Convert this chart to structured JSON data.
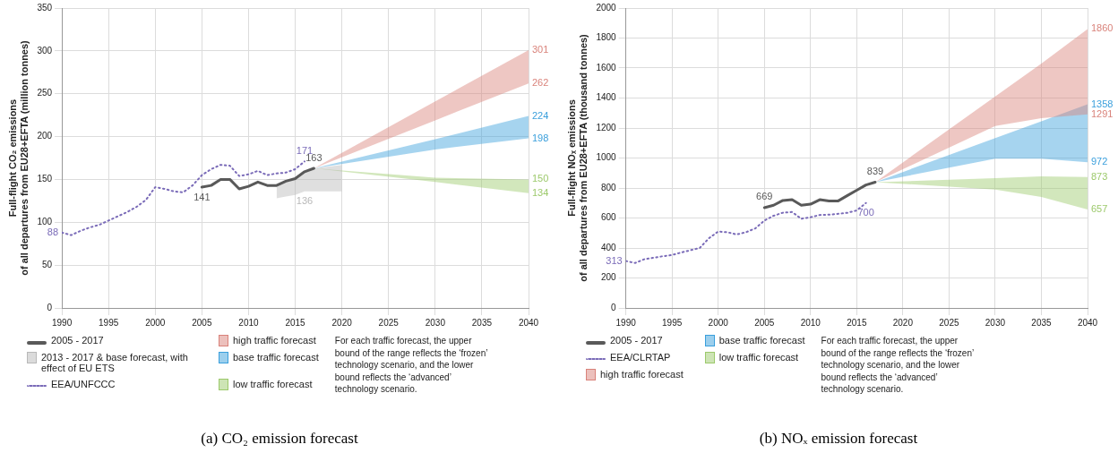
{
  "chart_data": [
    {
      "type": "line",
      "title": "(a) CO₂ emission forecast",
      "ylabel": "Full-flight CO₂ emissions\nof all departures from EU28+EFTA (million tonnes)",
      "xlim": [
        1990,
        2040
      ],
      "xticks": [
        1990,
        1995,
        2000,
        2005,
        2010,
        2015,
        2020,
        2025,
        2030,
        2035,
        2040
      ],
      "ylim": [
        0,
        350
      ],
      "yticks": [
        0,
        50,
        100,
        150,
        200,
        250,
        300,
        350
      ],
      "grid": true,
      "legend": "bottom",
      "marker": "none",
      "series": [
        {
          "name": "2005 - 2017",
          "color": "#595959",
          "x": [
            2005,
            2006,
            2007,
            2008,
            2009,
            2010,
            2011,
            2012,
            2013,
            2014,
            2015,
            2016,
            2017
          ],
          "values": [
            141,
            143,
            150,
            150,
            139,
            142,
            147,
            143,
            143,
            148,
            151,
            159,
            163
          ]
        },
        {
          "name": "2013 - 2017 & base forecast, with effect of EU ETS",
          "type": "area",
          "color": "#b8b8b8",
          "x": [
            2013,
            2014,
            2015,
            2016,
            2017,
            2020
          ],
          "values": [
            null,
            null,
            null,
            null,
            null,
            null
          ],
          "upper": [
            143,
            148,
            151,
            159,
            163,
            167
          ],
          "lower": [
            128,
            130,
            132,
            136,
            136,
            136
          ]
        },
        {
          "name": "EEA/UNFCCC",
          "color": "#7a6bb8",
          "line_style": "dotted",
          "x": [
            1990,
            1991,
            1992,
            1993,
            1994,
            1995,
            1996,
            1997,
            1998,
            1999,
            2000,
            2001,
            2002,
            2003,
            2004,
            2005,
            2006,
            2007,
            2008,
            2009,
            2010,
            2011,
            2012,
            2013,
            2014,
            2015,
            2016
          ],
          "values": [
            88,
            85,
            90,
            94,
            97,
            102,
            107,
            112,
            118,
            126,
            141,
            139,
            136,
            135,
            143,
            155,
            162,
            167,
            166,
            154,
            156,
            160,
            155,
            157,
            158,
            162,
            171
          ]
        },
        {
          "name": "high traffic forecast",
          "type": "area",
          "color": "#d9827a",
          "x": [
            2017,
            2030,
            2040
          ],
          "values": [
            null,
            null,
            null
          ],
          "upper": [
            163,
            241,
            301
          ],
          "lower": [
            163,
            219,
            262
          ]
        },
        {
          "name": "base traffic forecast",
          "type": "area",
          "color": "#3a9fdc",
          "x": [
            2017,
            2030,
            2040
          ],
          "values": [
            null,
            null,
            null
          ],
          "upper": [
            163,
            197,
            224
          ],
          "lower": [
            163,
            185,
            198
          ]
        },
        {
          "name": "low traffic forecast",
          "type": "area",
          "color": "#9cc96b",
          "x": [
            2017,
            2030,
            2040
          ],
          "values": [
            null,
            null,
            null
          ],
          "upper": [
            163,
            152,
            150
          ],
          "lower": [
            163,
            147,
            134
          ]
        }
      ],
      "annotations": [
        {
          "text": "88",
          "x": 1990,
          "y": 88
        },
        {
          "text": "171",
          "x": 2016,
          "y": 171
        },
        {
          "text": "163",
          "x": 2017,
          "y": 163
        },
        {
          "text": "141",
          "x": 2005,
          "y": 141
        },
        {
          "text": "136",
          "x": 2016,
          "y": 136
        },
        {
          "text": "301",
          "x": 2040,
          "y": 301
        },
        {
          "text": "262",
          "x": 2040,
          "y": 262
        },
        {
          "text": "224",
          "x": 2040,
          "y": 224
        },
        {
          "text": "198",
          "x": 2040,
          "y": 198
        },
        {
          "text": "150",
          "x": 2040,
          "y": 150
        },
        {
          "text": "134",
          "x": 2040,
          "y": 134
        },
        "For each traffic forecast, the upper bound of the range reflects the ‘frozen’ technology scenario, and the lower bound reflects the ‘advanced’ technology scenario."
      ]
    },
    {
      "type": "line",
      "title": "(b) NOₓ emission forecast",
      "ylabel": "Full-flight NOₓ emissions\nof all departures from EU28+EFTA (thousand tonnes)",
      "xlim": [
        1990,
        2040
      ],
      "xticks": [
        1990,
        1995,
        2000,
        2005,
        2010,
        2015,
        2020,
        2025,
        2030,
        2035,
        2040
      ],
      "ylim": [
        0,
        2000
      ],
      "yticks": [
        0,
        200,
        400,
        600,
        800,
        1000,
        1200,
        1400,
        1600,
        1800,
        2000
      ],
      "grid": true,
      "legend": "bottom",
      "marker": "none",
      "series": [
        {
          "name": "2005 - 2017",
          "color": "#595959",
          "x": [
            2005,
            2006,
            2007,
            2008,
            2009,
            2010,
            2011,
            2012,
            2013,
            2014,
            2015,
            2016,
            2017
          ],
          "values": [
            669,
            685,
            717,
            722,
            685,
            692,
            722,
            714,
            714,
            750,
            785,
            820,
            839
          ]
        },
        {
          "name": "EEA/CLRTAP",
          "color": "#7a6bb8",
          "line_style": "dotted",
          "x": [
            1990,
            1991,
            1992,
            1993,
            1994,
            1995,
            1996,
            1997,
            1998,
            1999,
            2000,
            2001,
            2002,
            2003,
            2004,
            2005,
            2006,
            2007,
            2008,
            2009,
            2010,
            2011,
            2012,
            2013,
            2014,
            2015,
            2016
          ],
          "values": [
            313,
            300,
            325,
            335,
            345,
            353,
            370,
            385,
            400,
            465,
            510,
            505,
            490,
            505,
            530,
            583,
            615,
            635,
            640,
            595,
            605,
            620,
            622,
            628,
            635,
            650,
            700
          ]
        },
        {
          "name": "high traffic forecast",
          "type": "area",
          "color": "#d9827a",
          "x": [
            2017,
            2030,
            2035,
            2040
          ],
          "values": [
            null,
            null,
            null,
            null
          ],
          "upper": [
            839,
            1410,
            1630,
            1860
          ],
          "lower": [
            839,
            1213,
            1265,
            1291
          ]
        },
        {
          "name": "base traffic forecast",
          "type": "area",
          "color": "#3a9fdc",
          "x": [
            2017,
            2030,
            2035,
            2040
          ],
          "values": [
            null,
            null,
            null,
            null
          ],
          "upper": [
            839,
            1133,
            1245,
            1358
          ],
          "lower": [
            839,
            995,
            995,
            972
          ]
        },
        {
          "name": "low traffic forecast",
          "type": "area",
          "color": "#9cc96b",
          "x": [
            2017,
            2030,
            2035,
            2040
          ],
          "values": [
            null,
            null,
            null,
            null
          ],
          "upper": [
            839,
            865,
            878,
            873
          ],
          "lower": [
            839,
            790,
            740,
            657
          ]
        }
      ],
      "annotations": [
        {
          "text": "313",
          "x": 1990,
          "y": 313
        },
        {
          "text": "669",
          "x": 2005,
          "y": 669
        },
        {
          "text": "839",
          "x": 2017,
          "y": 839
        },
        {
          "text": "700",
          "x": 2016,
          "y": 700
        },
        {
          "text": "1860",
          "x": 2040,
          "y": 1860
        },
        {
          "text": "1358",
          "x": 2040,
          "y": 1358
        },
        {
          "text": "1291",
          "x": 2040,
          "y": 1291
        },
        {
          "text": "972",
          "x": 2040,
          "y": 972
        },
        {
          "text": "873",
          "x": 2040,
          "y": 873
        },
        {
          "text": "657",
          "x": 2040,
          "y": 657
        },
        "For each traffic forecast, the upper bound of the range reflects the ‘frozen’ technology scenario, and the lower bound reflects the ‘advanced’ technology scenario."
      ]
    }
  ]
}
